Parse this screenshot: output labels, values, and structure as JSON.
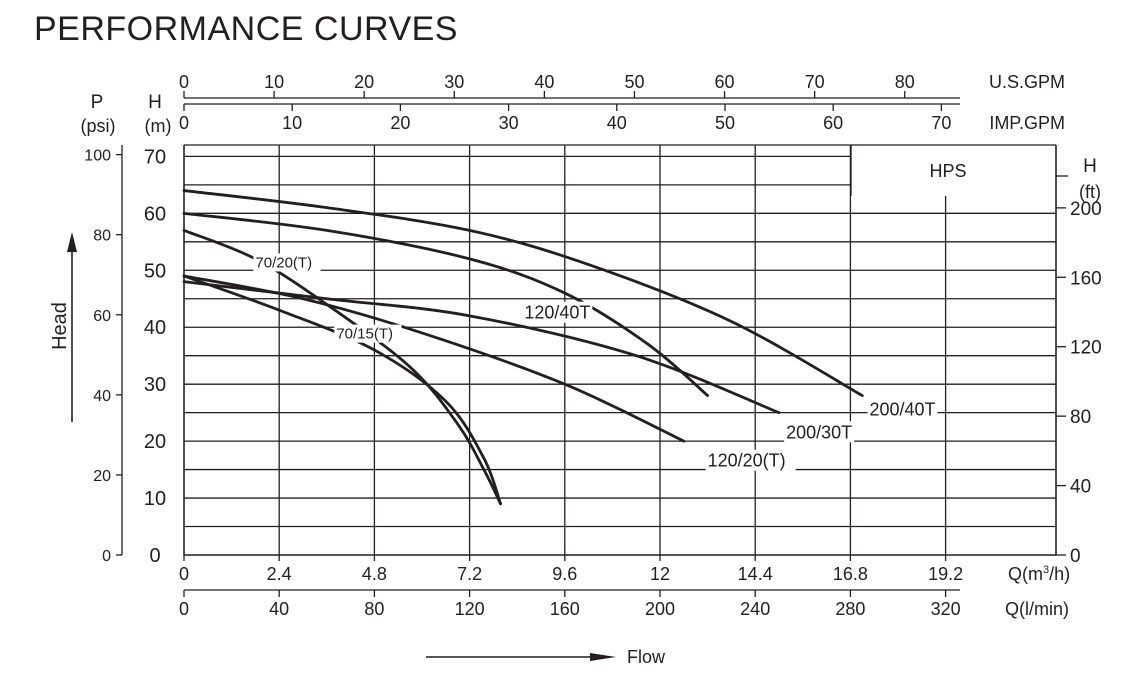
{
  "chart_data": {
    "type": "line",
    "title": "PERFORMANCE CURVES",
    "xlabel": "Flow",
    "ylabel": "Head",
    "box_label": "HPS",
    "x_unit_m3h": "Q(m³/h)",
    "x_unit_lmin": "Q(l/min)",
    "us_gpm_label": "U.S.GPM",
    "imp_gpm_label": "IMP.GPM",
    "p_unit": [
      "P",
      "(psi)"
    ],
    "h_unit": [
      "H",
      "(m)"
    ],
    "hft_unit": [
      "H",
      "(ft)"
    ],
    "xlim_lmin": [
      0,
      375
    ],
    "ylim_m": [
      0,
      72
    ],
    "ticks_m3h": [
      "0",
      "2.4",
      "4.8",
      "7.2",
      "9.6",
      "12",
      "14.4",
      "16.8",
      "19.2"
    ],
    "ticks_lmin": [
      "0",
      "40",
      "80",
      "120",
      "160",
      "200",
      "240",
      "280",
      "320"
    ],
    "ticks_usgpm": [
      "0",
      "10",
      "20",
      "30",
      "40",
      "50",
      "60",
      "70",
      "80"
    ],
    "ticks_impgpm": [
      "0",
      "10",
      "20",
      "30",
      "40",
      "50",
      "60",
      "70"
    ],
    "ticks_h_m": [
      "0",
      "10",
      "20",
      "30",
      "40",
      "50",
      "60",
      "70"
    ],
    "ticks_p_psi": [
      "0",
      "20",
      "40",
      "60",
      "80",
      "100"
    ],
    "ticks_h_ft": [
      "0",
      "40",
      "80",
      "120",
      "160",
      "200"
    ],
    "series": [
      {
        "name": "70/15(T)",
        "points": [
          [
            0,
            49
          ],
          [
            40,
            43
          ],
          [
            80,
            36
          ],
          [
            110,
            27
          ],
          [
            126,
            17
          ],
          [
            133,
            9
          ]
        ],
        "label_at": [
          64,
          38
        ]
      },
      {
        "name": "70/20(T)",
        "points": [
          [
            0,
            57
          ],
          [
            30,
            52
          ],
          [
            60,
            44
          ],
          [
            95,
            33
          ],
          [
            115,
            23
          ],
          [
            126,
            15
          ],
          [
            133,
            9
          ]
        ],
        "label_at": [
          30,
          50.5
        ]
      },
      {
        "name": "120/20(T)",
        "points": [
          [
            0,
            49
          ],
          [
            50,
            45
          ],
          [
            100,
            39
          ],
          [
            160,
            30
          ],
          [
            210,
            20
          ]
        ],
        "label_at": [
          220,
          15.5
        ]
      },
      {
        "name": "120/40T",
        "points": [
          [
            0,
            60
          ],
          [
            60,
            57
          ],
          [
            120,
            52
          ],
          [
            160,
            46
          ],
          [
            195,
            37
          ],
          [
            220,
            28
          ]
        ],
        "label_at": [
          143,
          41.5
        ]
      },
      {
        "name": "200/30T",
        "points": [
          [
            0,
            48
          ],
          [
            60,
            45
          ],
          [
            120,
            42
          ],
          [
            190,
            35
          ],
          [
            250,
            25
          ]
        ],
        "label_at": [
          253,
          20.5
        ]
      },
      {
        "name": "200/40T",
        "points": [
          [
            0,
            64
          ],
          [
            60,
            61
          ],
          [
            120,
            57
          ],
          [
            170,
            51
          ],
          [
            230,
            41
          ],
          [
            285,
            28
          ]
        ],
        "label_at": [
          288,
          24.5
        ]
      }
    ]
  }
}
